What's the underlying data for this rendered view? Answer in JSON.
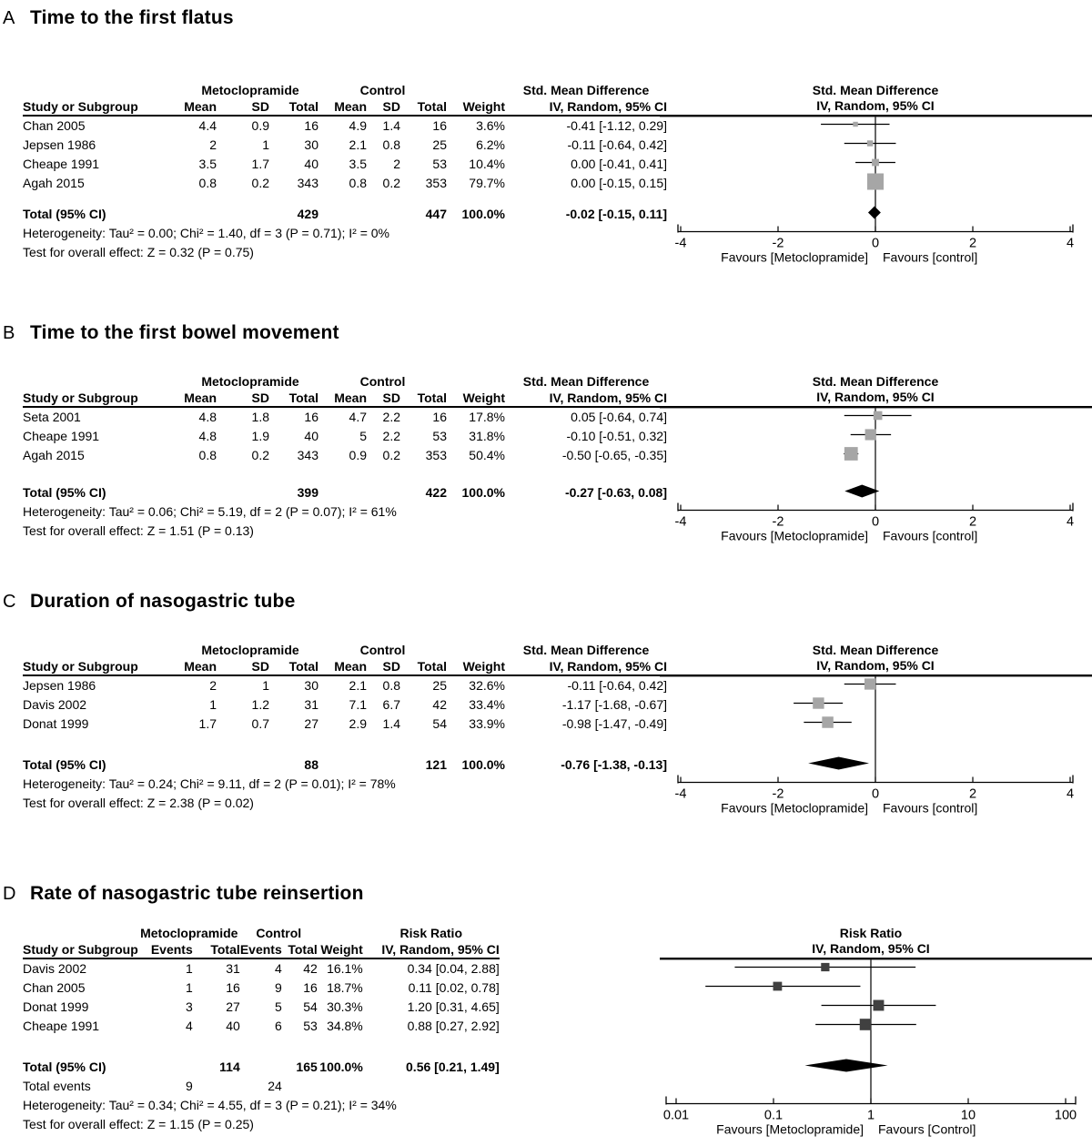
{
  "figure": {
    "panels": [
      {
        "label": "A",
        "title": "Time to the first flatus",
        "table": {
          "groups": [
            {
              "label": "",
              "span": 1
            },
            {
              "label": "Metoclopramide",
              "span": 3
            },
            {
              "label": "Control",
              "span": 3
            },
            {
              "label": "",
              "span": 1
            },
            {
              "label": "Std. Mean Difference",
              "span": 1
            }
          ],
          "columns": [
            "Study or Subgroup",
            "Mean",
            "SD",
            "Total",
            "Mean",
            "SD",
            "Total",
            "Weight",
            "IV, Random, 95% CI"
          ],
          "rows": [
            [
              "Chan 2005",
              "4.4",
              "0.9",
              "16",
              "4.9",
              "1.4",
              "16",
              "3.6%",
              "-0.41 [-1.12, 0.29]"
            ],
            [
              "Jepsen 1986",
              "2",
              "1",
              "30",
              "2.1",
              "0.8",
              "25",
              "6.2%",
              "-0.11 [-0.64, 0.42]"
            ],
            [
              "Cheape 1991",
              "3.5",
              "1.7",
              "40",
              "3.5",
              "2",
              "53",
              "10.4%",
              "0.00 [-0.41, 0.41]"
            ],
            [
              "Agah 2015",
              "0.8",
              "0.2",
              "343",
              "0.8",
              "0.2",
              "353",
              "79.7%",
              "0.00 [-0.15, 0.15]"
            ]
          ],
          "total_row": [
            "Total (95% CI)",
            "",
            "",
            "429",
            "",
            "",
            "447",
            "100.0%",
            "-0.02 [-0.15, 0.11]"
          ],
          "heterogeneity": "Heterogeneity: Tau² = 0.00; Chi² = 1.40, df = 3 (P = 0.71); I² = 0%",
          "overall_effect": "Test for overall effect: Z = 0.32 (P = 0.75)"
        }
      },
      {
        "label": "B",
        "title": "Time to the first bowel movement",
        "table": {
          "groups": [
            {
              "label": "",
              "span": 1
            },
            {
              "label": "Metoclopramide",
              "span": 3
            },
            {
              "label": "Control",
              "span": 3
            },
            {
              "label": "",
              "span": 1
            },
            {
              "label": "Std. Mean Difference",
              "span": 1
            }
          ],
          "columns": [
            "Study or Subgroup",
            "Mean",
            "SD",
            "Total",
            "Mean",
            "SD",
            "Total",
            "Weight",
            "IV, Random, 95% CI"
          ],
          "rows": [
            [
              "Seta 2001",
              "4.8",
              "1.8",
              "16",
              "4.7",
              "2.2",
              "16",
              "17.8%",
              "0.05 [-0.64, 0.74]"
            ],
            [
              "Cheape 1991",
              "4.8",
              "1.9",
              "40",
              "5",
              "2.2",
              "53",
              "31.8%",
              "-0.10 [-0.51, 0.32]"
            ],
            [
              "Agah 2015",
              "0.8",
              "0.2",
              "343",
              "0.9",
              "0.2",
              "353",
              "50.4%",
              "-0.50 [-0.65, -0.35]"
            ]
          ],
          "total_row": [
            "Total (95% CI)",
            "",
            "",
            "399",
            "",
            "",
            "422",
            "100.0%",
            "-0.27 [-0.63, 0.08]"
          ],
          "heterogeneity": "Heterogeneity: Tau² = 0.06; Chi² = 5.19, df = 2 (P = 0.07); I² = 61%",
          "overall_effect": "Test for overall effect: Z = 1.51 (P = 0.13)"
        }
      },
      {
        "label": "C",
        "title": "Duration of nasogastric tube",
        "table": {
          "groups": [
            {
              "label": "",
              "span": 1
            },
            {
              "label": "Metoclopramide",
              "span": 3
            },
            {
              "label": "Control",
              "span": 3
            },
            {
              "label": "",
              "span": 1
            },
            {
              "label": "Std. Mean Difference",
              "span": 1
            }
          ],
          "columns": [
            "Study or Subgroup",
            "Mean",
            "SD",
            "Total",
            "Mean",
            "SD",
            "Total",
            "Weight",
            "IV, Random, 95% CI"
          ],
          "rows": [
            [
              "Jepsen 1986",
              "2",
              "1",
              "30",
              "2.1",
              "0.8",
              "25",
              "32.6%",
              "-0.11 [-0.64, 0.42]"
            ],
            [
              "Davis 2002",
              "1",
              "1.2",
              "31",
              "7.1",
              "6.7",
              "42",
              "33.4%",
              "-1.17 [-1.68, -0.67]"
            ],
            [
              "Donat 1999",
              "1.7",
              "0.7",
              "27",
              "2.9",
              "1.4",
              "54",
              "33.9%",
              "-0.98 [-1.47, -0.49]"
            ]
          ],
          "total_row": [
            "Total (95% CI)",
            "",
            "",
            "88",
            "",
            "",
            "121",
            "100.0%",
            "-0.76 [-1.38, -0.13]"
          ],
          "heterogeneity": "Heterogeneity: Tau² = 0.24; Chi² = 9.11, df = 2 (P = 0.01); I² = 78%",
          "overall_effect": "Test for overall effect: Z = 2.38 (P = 0.02)"
        }
      },
      {
        "label": "D",
        "title": "Rate of nasogastric tube reinsertion",
        "table": {
          "groups": [
            {
              "label": "",
              "span": 1
            },
            {
              "label": "Metoclopramide",
              "span": 2
            },
            {
              "label": "Control",
              "span": 2
            },
            {
              "label": "",
              "span": 1
            },
            {
              "label": "Risk Ratio",
              "span": 1
            }
          ],
          "columns": [
            "Study or Subgroup",
            "Events",
            "Total",
            "Events",
            "Total",
            "Weight",
            "IV, Random, 95% CI"
          ],
          "rows": [
            [
              "Davis 2002",
              "1",
              "31",
              "4",
              "42",
              "16.1%",
              "0.34 [0.04, 2.88]"
            ],
            [
              "Chan 2005",
              "1",
              "16",
              "9",
              "16",
              "18.7%",
              "0.11 [0.02, 0.78]"
            ],
            [
              "Donat 1999",
              "3",
              "27",
              "5",
              "54",
              "30.3%",
              "1.20 [0.31, 4.65]"
            ],
            [
              "Cheape 1991",
              "4",
              "40",
              "6",
              "53",
              "34.8%",
              "0.88 [0.27, 2.92]"
            ]
          ],
          "total_row": [
            "Total (95% CI)",
            "",
            "114",
            "",
            "165",
            "100.0%",
            "0.56 [0.21, 1.49]"
          ],
          "total_events_row": [
            "Total events",
            "9",
            "",
            "24",
            "",
            "",
            ""
          ],
          "heterogeneity": "Heterogeneity: Tau² = 0.34; Chi² = 4.55, df = 3 (P = 0.21); I² = 34%",
          "overall_effect": "Test for overall effect: Z = 1.15 (P = 0.25)"
        }
      }
    ]
  },
  "chart_data": [
    {
      "type": "scatter",
      "subtype": "forest-plot",
      "title": "Time to the first flatus",
      "effect_measure": "Std. Mean Difference",
      "method": "IV, Random, 95% CI",
      "scale": "linear",
      "xlim": [
        -4,
        4
      ],
      "ticks": [
        -4,
        -2,
        0,
        2,
        4
      ],
      "tick_labels": [
        "-4",
        "-2",
        "0",
        "2",
        "4"
      ],
      "favours_left": "Favours [Metoclopramide]",
      "favours_right": "Favours [control]",
      "marker_color": "#a6a6a6",
      "diamond_color": "#000000",
      "studies": [
        {
          "name": "Chan 2005",
          "est": -0.41,
          "lo": -1.12,
          "hi": 0.29,
          "weight_pct": 3.6
        },
        {
          "name": "Jepsen 1986",
          "est": -0.11,
          "lo": -0.64,
          "hi": 0.42,
          "weight_pct": 6.2
        },
        {
          "name": "Cheape 1991",
          "est": 0.0,
          "lo": -0.41,
          "hi": 0.41,
          "weight_pct": 10.4
        },
        {
          "name": "Agah 2015",
          "est": 0.0,
          "lo": -0.15,
          "hi": 0.15,
          "weight_pct": 79.7
        }
      ],
      "total": {
        "name": "Total (95% CI)",
        "est": -0.02,
        "lo": -0.15,
        "hi": 0.11
      }
    },
    {
      "type": "scatter",
      "subtype": "forest-plot",
      "title": "Time to the first bowel movement",
      "effect_measure": "Std. Mean Difference",
      "method": "IV, Random, 95% CI",
      "scale": "linear",
      "xlim": [
        -4,
        4
      ],
      "ticks": [
        -4,
        -2,
        0,
        2,
        4
      ],
      "tick_labels": [
        "-4",
        "-2",
        "0",
        "2",
        "4"
      ],
      "favours_left": "Favours [Metoclopramide]",
      "favours_right": "Favours [control]",
      "marker_color": "#a6a6a6",
      "diamond_color": "#000000",
      "studies": [
        {
          "name": "Seta 2001",
          "est": 0.05,
          "lo": -0.64,
          "hi": 0.74,
          "weight_pct": 17.8
        },
        {
          "name": "Cheape 1991",
          "est": -0.1,
          "lo": -0.51,
          "hi": 0.32,
          "weight_pct": 31.8
        },
        {
          "name": "Agah 2015",
          "est": -0.5,
          "lo": -0.65,
          "hi": -0.35,
          "weight_pct": 50.4
        }
      ],
      "total": {
        "name": "Total (95% CI)",
        "est": -0.27,
        "lo": -0.63,
        "hi": 0.08
      }
    },
    {
      "type": "scatter",
      "subtype": "forest-plot",
      "title": "Duration of nasogastric tube",
      "effect_measure": "Std. Mean Difference",
      "method": "IV, Random, 95% CI",
      "scale": "linear",
      "xlim": [
        -4,
        4
      ],
      "ticks": [
        -4,
        -2,
        0,
        2,
        4
      ],
      "tick_labels": [
        "-4",
        "-2",
        "0",
        "2",
        "4"
      ],
      "favours_left": "Favours [Metoclopramide]",
      "favours_right": "Favours [control]",
      "marker_color": "#a6a6a6",
      "diamond_color": "#000000",
      "studies": [
        {
          "name": "Jepsen 1986",
          "est": -0.11,
          "lo": -0.64,
          "hi": 0.42,
          "weight_pct": 32.6
        },
        {
          "name": "Davis 2002",
          "est": -1.17,
          "lo": -1.68,
          "hi": -0.67,
          "weight_pct": 33.4
        },
        {
          "name": "Donat 1999",
          "est": -0.98,
          "lo": -1.47,
          "hi": -0.49,
          "weight_pct": 33.9
        }
      ],
      "total": {
        "name": "Total (95% CI)",
        "est": -0.76,
        "lo": -1.38,
        "hi": -0.13
      }
    },
    {
      "type": "scatter",
      "subtype": "forest-plot",
      "title": "Rate of nasogastric tube reinsertion",
      "effect_measure": "Risk Ratio",
      "method": "IV, Random, 95% CI",
      "scale": "log",
      "xlim": [
        0.01,
        100
      ],
      "ticks": [
        0.01,
        0.1,
        1,
        10,
        100
      ],
      "tick_labels": [
        "0.01",
        "0.1",
        "1",
        "10",
        "100"
      ],
      "favours_left": "Favours [Metoclopramide]",
      "favours_right": "Favours [Control]",
      "marker_color": "#404040",
      "diamond_color": "#000000",
      "studies": [
        {
          "name": "Davis 2002",
          "est": 0.34,
          "lo": 0.04,
          "hi": 2.88,
          "weight_pct": 16.1
        },
        {
          "name": "Chan 2005",
          "est": 0.11,
          "lo": 0.02,
          "hi": 0.78,
          "weight_pct": 18.7
        },
        {
          "name": "Donat 1999",
          "est": 1.2,
          "lo": 0.31,
          "hi": 4.65,
          "weight_pct": 30.3
        },
        {
          "name": "Cheape 1991",
          "est": 0.88,
          "lo": 0.27,
          "hi": 2.92,
          "weight_pct": 34.8
        }
      ],
      "total": {
        "name": "Total (95% CI)",
        "est": 0.56,
        "lo": 0.21,
        "hi": 1.49
      }
    }
  ]
}
